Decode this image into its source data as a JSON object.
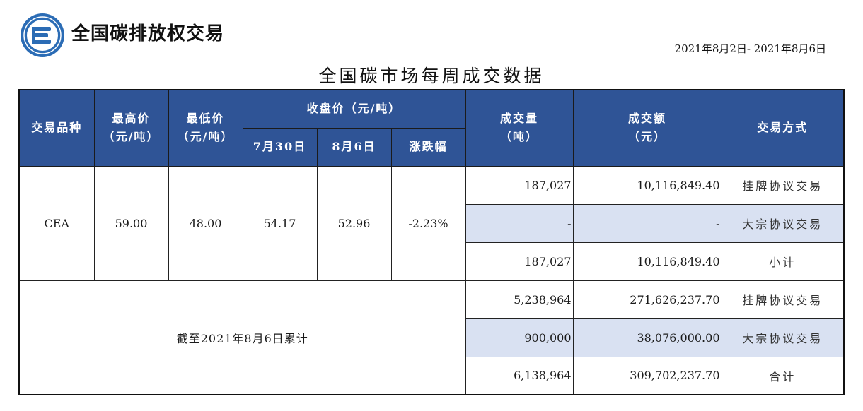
{
  "header": {
    "brand": "全国碳排放权交易",
    "date_range": "2021年8月2日- 2021年8月6日",
    "title": "全国碳市场每周成交数据"
  },
  "colors": {
    "header_bg": "#2f5496",
    "highlight_row": "#d9e1f2",
    "logo": "#2b6cb5"
  },
  "columns": {
    "variety": "交易品种",
    "high": "最高价",
    "high_unit": "（元/吨）",
    "low": "最低价",
    "low_unit": "（元/吨）",
    "close": "收盘价（元/吨）",
    "close_prev": "7月30日",
    "close_curr": "8月6日",
    "change": "涨跌幅",
    "volume": "成交量",
    "volume_unit": "（吨）",
    "amount": "成交额",
    "amount_unit": "（元）",
    "mode": "交易方式"
  },
  "weekly": {
    "variety": "CEA",
    "high": "59.00",
    "low": "48.00",
    "close_prev": "54.17",
    "close_curr": "52.96",
    "change": "-2.23%",
    "rows": [
      {
        "volume": "187,027",
        "amount": "10,116,849.40",
        "mode": "挂牌协议交易"
      },
      {
        "volume": "-",
        "amount": "-",
        "mode": "大宗协议交易"
      },
      {
        "volume": "187,027",
        "amount": "10,116,849.40",
        "mode": "小计"
      }
    ]
  },
  "cumulative": {
    "label": "截至2021年8月6日累计",
    "rows": [
      {
        "volume": "5,238,964",
        "amount": "271,626,237.70",
        "mode": "挂牌协议交易"
      },
      {
        "volume": "900,000",
        "amount": "38,076,000.00",
        "mode": "大宗协议交易"
      },
      {
        "volume": "6,138,964",
        "amount": "309,702,237.70",
        "mode": "合计"
      }
    ]
  }
}
